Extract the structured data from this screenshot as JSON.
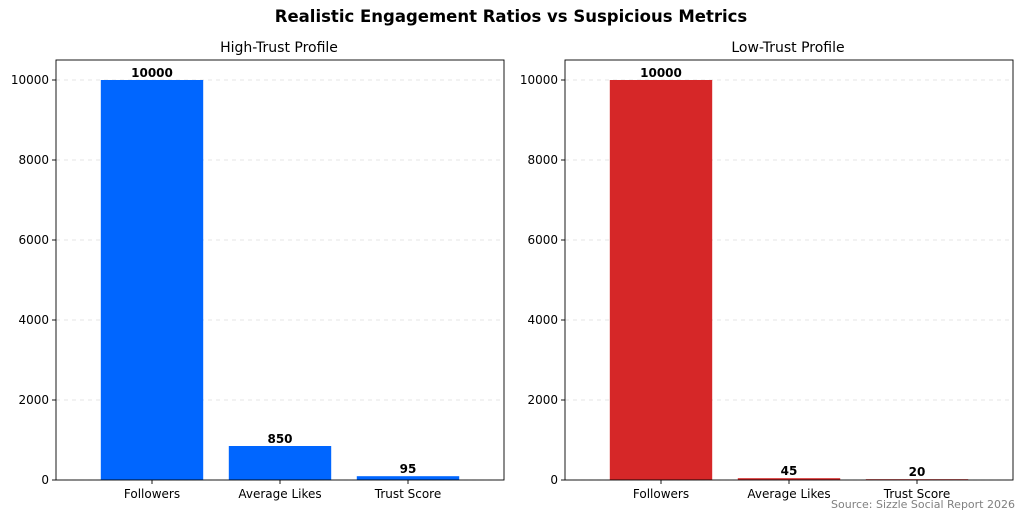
{
  "title": "Realistic Engagement Ratios vs Suspicious Metrics",
  "source": "Source: Sizzle Social Report 2026",
  "chart_data": [
    {
      "type": "bar",
      "title": "High-Trust Profile",
      "categories": [
        "Followers",
        "Average Likes",
        "Trust Score"
      ],
      "values": [
        10000,
        850,
        95
      ],
      "color": "#0066ff",
      "ylim": [
        0,
        10500
      ],
      "yticks": [
        0,
        2000,
        4000,
        6000,
        8000,
        10000
      ],
      "grid": true,
      "xlabel": "",
      "ylabel": ""
    },
    {
      "type": "bar",
      "title": "Low-Trust Profile",
      "categories": [
        "Followers",
        "Average Likes",
        "Trust Score"
      ],
      "values": [
        10000,
        45,
        20
      ],
      "color": "#d62728",
      "ylim": [
        0,
        10500
      ],
      "yticks": [
        0,
        2000,
        4000,
        6000,
        8000,
        10000
      ],
      "grid": true,
      "xlabel": "",
      "ylabel": ""
    }
  ]
}
